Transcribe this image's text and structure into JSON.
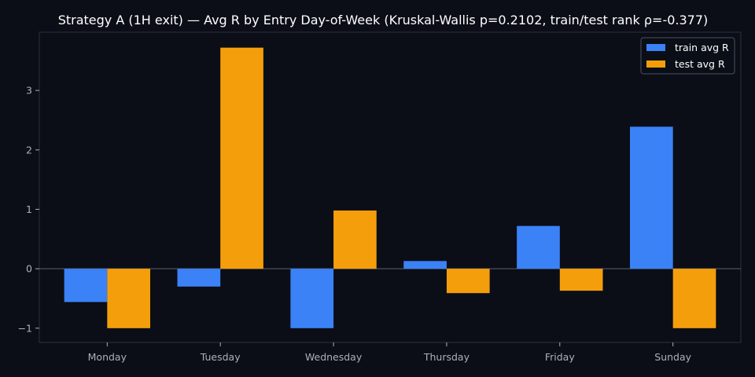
{
  "chart_data": {
    "type": "bar",
    "title": "Strategy A (1H exit) — Avg R by Entry Day-of-Week (Kruskal-Wallis p=0.2102, train/test rank ρ=-0.377)",
    "xlabel": "",
    "ylabel": "",
    "categories": [
      "Monday",
      "Tuesday",
      "Wednesday",
      "Thursday",
      "Friday",
      "Sunday"
    ],
    "series": [
      {
        "name": "train avg R",
        "color": "#3b82f6",
        "values": [
          -0.56,
          -0.3,
          -1.0,
          0.13,
          0.72,
          2.39
        ]
      },
      {
        "name": "test avg R",
        "color": "#f59e0b",
        "values": [
          -1.0,
          3.72,
          0.98,
          -0.41,
          -0.37,
          -1.0
        ]
      }
    ],
    "ylim": [
      -1.24,
      3.98
    ],
    "yticks": [
      -1,
      0,
      1,
      2,
      3
    ],
    "ytick_labels": [
      "−1",
      "0",
      "1",
      "2",
      "3"
    ],
    "grid": false,
    "legend": {
      "position": "top-right"
    },
    "colors": {
      "background": "#0b0e17",
      "axes_border": "#2a3040",
      "zero_line": "#5a6070",
      "text": "#ffffff",
      "tick_text": "#aab0bf"
    }
  }
}
